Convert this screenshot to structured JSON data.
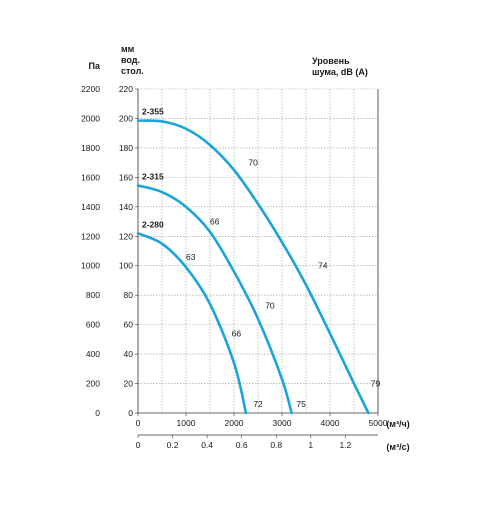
{
  "chart_data": {
    "type": "line",
    "title": "",
    "y_axis_pa": {
      "label": "Па",
      "ticks": [
        "0",
        "200",
        "400",
        "600",
        "800",
        "1000",
        "1200",
        "1400",
        "1600",
        "1800",
        "2000",
        "2200"
      ],
      "ylim": [
        0,
        2200
      ]
    },
    "y_axis_mm": {
      "label": [
        "мм",
        "вод.",
        "стол."
      ],
      "ticks": [
        "0",
        "20",
        "40",
        "60",
        "80",
        "100",
        "120",
        "140",
        "160",
        "180",
        "200",
        "220"
      ],
      "ylim": [
        0,
        220
      ]
    },
    "x_axis_m3h": {
      "label": "(м³/ч)",
      "ticks": [
        "0",
        "1000",
        "2000",
        "3000",
        "4000",
        "5000"
      ],
      "xlim": [
        0,
        5000
      ]
    },
    "x_axis_m3s": {
      "label": "(м³/с)",
      "ticks": [
        "0",
        "0.2",
        "0.4",
        "0.6",
        "0.8",
        "1",
        "1.2"
      ]
    },
    "noise_axis_label": [
      "Уровень",
      "шума, dB (A)"
    ],
    "grid": true,
    "series_color": "#1aa3dc",
    "series": [
      {
        "name": "2-355",
        "x": [
          0,
          500,
          1000,
          1500,
          2000,
          2500,
          3000,
          3500,
          4000,
          4500,
          4800
        ],
        "y": [
          1985,
          1980,
          1930,
          1820,
          1650,
          1420,
          1160,
          870,
          540,
          200,
          0
        ],
        "noise_labels": [
          {
            "text": "70",
            "x": 2300,
            "y": 1700
          },
          {
            "text": "74",
            "x": 3750,
            "y": 1000
          },
          {
            "text": "79",
            "x": 4850,
            "y": 200
          }
        ]
      },
      {
        "name": "2-315",
        "x": [
          0,
          500,
          1000,
          1500,
          2000,
          2500,
          3000,
          3200
        ],
        "y": [
          1545,
          1500,
          1400,
          1230,
          960,
          640,
          230,
          0
        ],
        "noise_labels": [
          {
            "text": "66",
            "x": 1500,
            "y": 1300
          },
          {
            "text": "70",
            "x": 2650,
            "y": 730
          },
          {
            "text": "75",
            "x": 3300,
            "y": 60
          }
        ]
      },
      {
        "name": "2-280",
        "x": [
          0,
          500,
          1000,
          1500,
          2000,
          2250
        ],
        "y": [
          1220,
          1150,
          990,
          740,
          340,
          0
        ],
        "noise_labels": [
          {
            "text": "63",
            "x": 1000,
            "y": 1060
          },
          {
            "text": "66",
            "x": 1950,
            "y": 540
          },
          {
            "text": "72",
            "x": 2400,
            "y": 60
          }
        ]
      }
    ]
  }
}
